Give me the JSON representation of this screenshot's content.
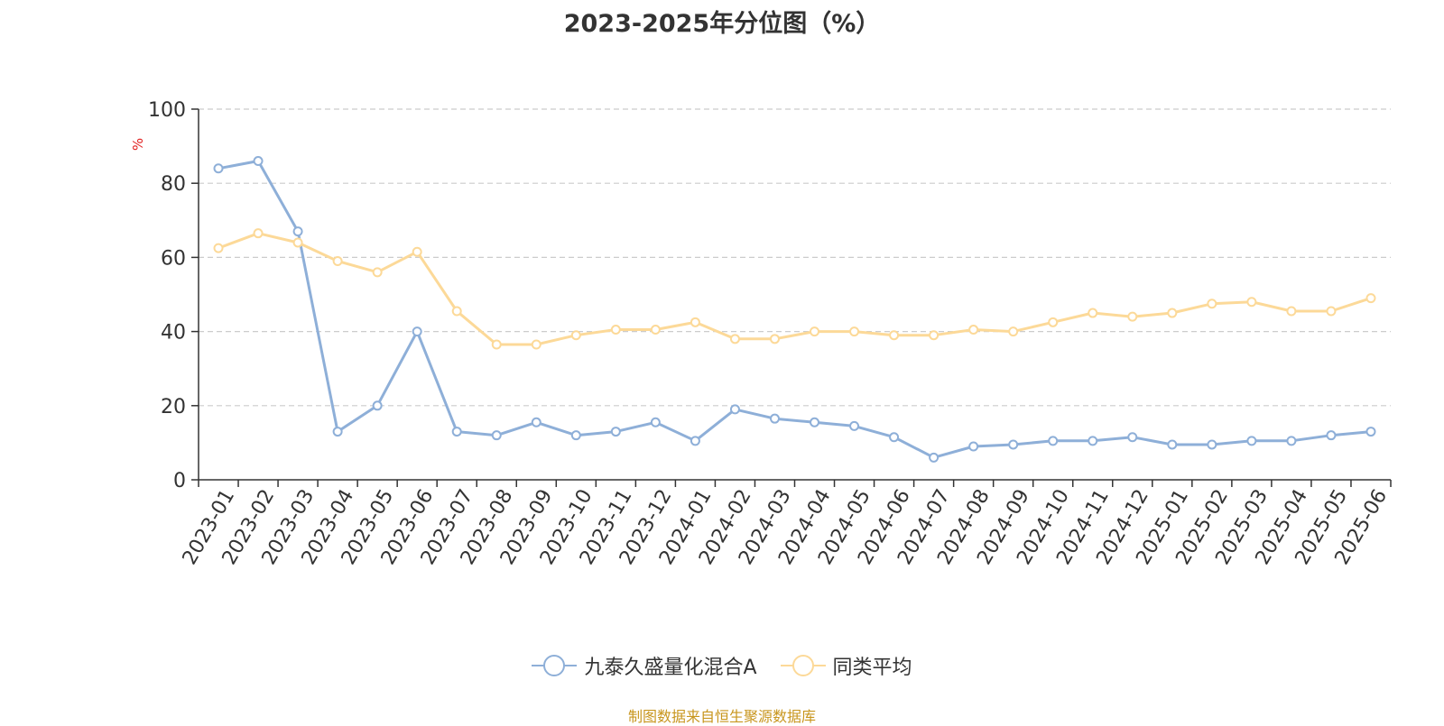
{
  "chart_data": {
    "type": "line",
    "title": "2023-2025年分位图（%）",
    "ylabel": "%",
    "xlabel": "",
    "ylim": [
      0,
      100
    ],
    "yticks": [
      0,
      20,
      40,
      60,
      80,
      100
    ],
    "grid": true,
    "legend_position": "bottom",
    "categories": [
      "2023-01",
      "2023-02",
      "2023-03",
      "2023-04",
      "2023-05",
      "2023-06",
      "2023-07",
      "2023-08",
      "2023-09",
      "2023-10",
      "2023-11",
      "2023-12",
      "2024-01",
      "2024-02",
      "2024-03",
      "2024-04",
      "2024-05",
      "2024-06",
      "2024-07",
      "2024-08",
      "2024-09",
      "2024-10",
      "2024-11",
      "2024-12",
      "2025-01",
      "2025-02",
      "2025-03",
      "2025-04",
      "2025-05",
      "2025-06"
    ],
    "series": [
      {
        "name": "九泰久盛量化混合A",
        "color": "#8eafd8",
        "values": [
          84,
          86,
          67,
          13,
          20,
          40,
          13,
          12,
          15.5,
          12,
          13,
          15.5,
          10.5,
          19,
          16.5,
          15.5,
          14.5,
          11.5,
          6,
          9,
          9.5,
          10.5,
          10.5,
          11.5,
          9.5,
          9.5,
          10.5,
          10.5,
          12,
          13
        ]
      },
      {
        "name": "同类平均",
        "color": "#fcd998",
        "values": [
          62.5,
          66.5,
          64,
          59,
          56,
          61.5,
          45.5,
          36.5,
          36.5,
          39,
          40.5,
          40.5,
          42.5,
          38,
          38,
          40,
          40,
          39,
          39,
          40.5,
          40,
          42.5,
          45,
          44,
          45,
          47.5,
          48,
          45.5,
          45.5,
          49
        ]
      }
    ],
    "source_note": "制图数据来自恒生聚源数据库"
  }
}
